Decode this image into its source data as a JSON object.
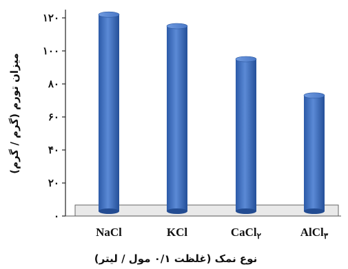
{
  "chart_data": {
    "type": "bar",
    "title": "",
    "xlabel": "نوع نمک (غلظت ۰/۱ مول / لیتر)",
    "ylabel": "میزان تورم (گرم / گرم)",
    "categories": [
      "NaCl",
      "KCl",
      "CaCl۲",
      "AlCl۳"
    ],
    "category_display": [
      {
        "base": "NaCl",
        "sub": ""
      },
      {
        "base": "KCl",
        "sub": ""
      },
      {
        "base": "CaCl",
        "sub": "۲"
      },
      {
        "base": "AlCl",
        "sub": "۳"
      }
    ],
    "series": [
      {
        "values": [
          122,
          115,
          95,
          73
        ]
      }
    ],
    "ylim": [
      0,
      120
    ],
    "yticks": [
      0,
      20,
      40,
      60,
      80,
      100,
      120
    ],
    "ytick_labels": [
      "۰",
      "۲۰",
      "۴۰",
      "۶۰",
      "۸۰",
      "۱۰۰",
      "۱۲۰"
    ],
    "grid": false,
    "legend": "none",
    "bar_color": "#3f6fbe",
    "floor_color": "#e9e9e9"
  }
}
